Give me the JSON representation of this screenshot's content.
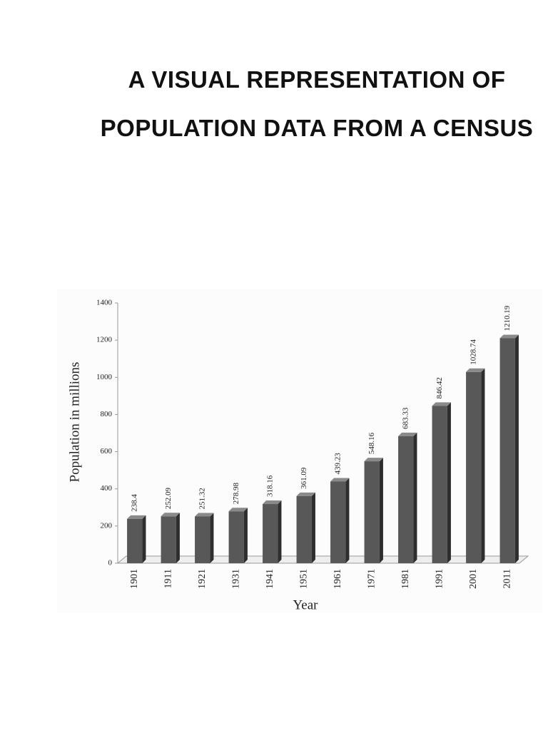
{
  "chart_data": {
    "type": "bar",
    "title": [
      "A VISUAL REPRESENTATION OF",
      "POPULATION DATA FROM A CENSUS"
    ],
    "ylabel": "Population in millions",
    "xlabel": "Year",
    "categories": [
      "1901",
      "1911",
      "1921",
      "1931",
      "1941",
      "1951",
      "1961",
      "1971",
      "1981",
      "1991",
      "2001",
      "2011"
    ],
    "values": [
      238.4,
      252.09,
      251.32,
      278.98,
      318.16,
      361.09,
      439.23,
      548.16,
      683.33,
      846.42,
      1028.74,
      1210.19
    ],
    "color": "#585858",
    "ylim": [
      0,
      1400
    ],
    "yticks": [
      0,
      200,
      400,
      600,
      800,
      1000,
      1200,
      1400
    ],
    "grid": false
  }
}
